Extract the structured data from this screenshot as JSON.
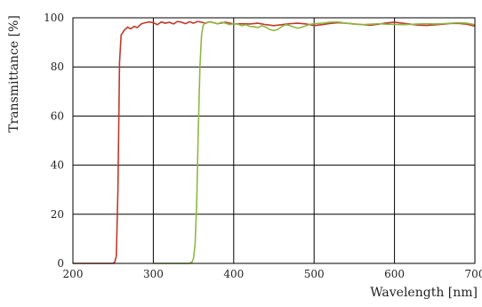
{
  "chart_data": {
    "type": "line",
    "title": "",
    "xlabel": "Wavelength [nm]",
    "ylabel": "Transmittance [%]",
    "xlim": [
      200,
      700
    ],
    "ylim": [
      0,
      100
    ],
    "x_ticks": [
      "200",
      "300",
      "400",
      "500",
      "600",
      "700"
    ],
    "y_ticks": [
      "0",
      "20",
      "40",
      "60",
      "80",
      "100"
    ],
    "grid": true,
    "legend": "none",
    "series": [
      {
        "color": "#c0392b",
        "points": [
          [
            200,
            0
          ],
          [
            250,
            0
          ],
          [
            252,
            0.5
          ],
          [
            254,
            3
          ],
          [
            256,
            30
          ],
          [
            258,
            82
          ],
          [
            260,
            93
          ],
          [
            264,
            95
          ],
          [
            268,
            96.2
          ],
          [
            272,
            95.5
          ],
          [
            276,
            96.5
          ],
          [
            280,
            96
          ],
          [
            285,
            97.5
          ],
          [
            290,
            98
          ],
          [
            295,
            98.3
          ],
          [
            300,
            98
          ],
          [
            305,
            97.2
          ],
          [
            310,
            98.3
          ],
          [
            315,
            97.8
          ],
          [
            320,
            98.2
          ],
          [
            325,
            97.5
          ],
          [
            330,
            98.5
          ],
          [
            335,
            98.2
          ],
          [
            340,
            97.6
          ],
          [
            345,
            98.4
          ],
          [
            350,
            97.8
          ],
          [
            355,
            98.5
          ],
          [
            360,
            98.2
          ],
          [
            365,
            97.8
          ],
          [
            370,
            98.4
          ],
          [
            380,
            97.6
          ],
          [
            390,
            98.2
          ],
          [
            400,
            97.5
          ],
          [
            410,
            97.6
          ],
          [
            420,
            97.5
          ],
          [
            430,
            97.8
          ],
          [
            440,
            97.2
          ],
          [
            450,
            96.8
          ],
          [
            460,
            97.2
          ],
          [
            470,
            97.6
          ],
          [
            480,
            97.8
          ],
          [
            490,
            97.5
          ],
          [
            500,
            96.8
          ],
          [
            510,
            97.2
          ],
          [
            520,
            97.7
          ],
          [
            530,
            98
          ],
          [
            540,
            97.8
          ],
          [
            550,
            97.5
          ],
          [
            560,
            97.2
          ],
          [
            570,
            97
          ],
          [
            580,
            97.4
          ],
          [
            590,
            97.9
          ],
          [
            600,
            98.2
          ],
          [
            610,
            97.8
          ],
          [
            620,
            97.4
          ],
          [
            630,
            97
          ],
          [
            640,
            96.9
          ],
          [
            650,
            97.1
          ],
          [
            660,
            97.4
          ],
          [
            670,
            97.7
          ],
          [
            680,
            97.7
          ],
          [
            690,
            97.4
          ],
          [
            700,
            96.6
          ]
        ]
      },
      {
        "color": "#8db843",
        "points": [
          [
            300,
            0
          ],
          [
            345,
            0
          ],
          [
            348,
            0.5
          ],
          [
            350,
            2
          ],
          [
            352,
            8
          ],
          [
            354,
            25
          ],
          [
            356,
            55
          ],
          [
            358,
            80
          ],
          [
            360,
            93
          ],
          [
            362,
            97
          ],
          [
            365,
            98
          ],
          [
            370,
            98.3
          ],
          [
            375,
            98
          ],
          [
            380,
            97.5
          ],
          [
            385,
            98.2
          ],
          [
            390,
            97.8
          ],
          [
            395,
            97.2
          ],
          [
            400,
            97.6
          ],
          [
            405,
            97.4
          ],
          [
            410,
            96.8
          ],
          [
            415,
            97.2
          ],
          [
            420,
            96.5
          ],
          [
            425,
            96.4
          ],
          [
            430,
            96
          ],
          [
            435,
            96.8
          ],
          [
            440,
            96.2
          ],
          [
            445,
            95.2
          ],
          [
            450,
            94.8
          ],
          [
            455,
            95.3
          ],
          [
            460,
            96.5
          ],
          [
            465,
            97.2
          ],
          [
            470,
            96.8
          ],
          [
            475,
            96.2
          ],
          [
            480,
            95.8
          ],
          [
            485,
            96.2
          ],
          [
            490,
            96.8
          ],
          [
            495,
            97.3
          ],
          [
            500,
            97.6
          ],
          [
            510,
            97.8
          ],
          [
            520,
            98.2
          ],
          [
            530,
            98.3
          ],
          [
            540,
            97.8
          ],
          [
            550,
            97.4
          ],
          [
            560,
            97.2
          ],
          [
            570,
            97.4
          ],
          [
            580,
            97.6
          ],
          [
            590,
            97.4
          ],
          [
            600,
            97.3
          ],
          [
            610,
            97.2
          ],
          [
            620,
            97.3
          ],
          [
            630,
            97.5
          ],
          [
            640,
            97.6
          ],
          [
            650,
            97.5
          ],
          [
            660,
            97.6
          ],
          [
            670,
            97.8
          ],
          [
            680,
            98
          ],
          [
            690,
            97.8
          ],
          [
            700,
            97.2
          ]
        ]
      }
    ]
  }
}
